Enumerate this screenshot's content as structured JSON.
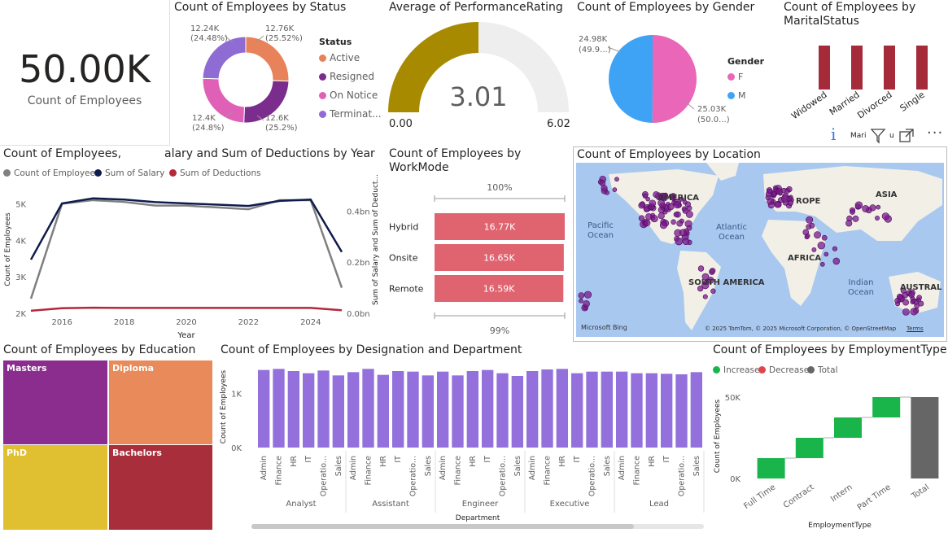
{
  "kpi": {
    "value": "50.00K",
    "label": "Count of Employees"
  },
  "status": {
    "title": "Count of Employees by Status",
    "legend_title": "Status",
    "labels": [
      "12.76K\n(25.52%)",
      "12.6K\n(25.2%)",
      "12.4K\n(24.8%)",
      "12.24K\n(24.48%)"
    ],
    "legend": [
      "Active",
      "Resigned",
      "On Notice",
      "Terminat..."
    ],
    "colors": [
      "#e8825a",
      "#7b2d8e",
      "#e060b8",
      "#8f6bd4"
    ]
  },
  "perf": {
    "title": "Average of PerformanceRating",
    "value": "3.01",
    "min": "0.00",
    "max": "6.02",
    "color": "#a88a00"
  },
  "gender": {
    "title": "Count of Employees by Gender",
    "legend_title": "Gender",
    "legend": [
      "F",
      "M"
    ],
    "label_m": "24.98K\n(49.9...)",
    "label_f": "25.03K\n(50.0...)",
    "colors": [
      "#e966b8",
      "#3fa3f5"
    ]
  },
  "marital": {
    "title": "Count of Employees by",
    "title2": "MaritalStatus",
    "small_label": "Mari",
    "small_u": "u",
    "icons": [
      "info-icon",
      "filter-icon",
      "expand-icon",
      "more-icon"
    ]
  },
  "trend": {
    "title_left": "Count of Employees,",
    "title_right": "alary and Sum of Deductions by Year",
    "legend": [
      "Count of Employees",
      "Sum of Salary",
      "Sum of Deductions"
    ],
    "colors": [
      "#808080",
      "#0f1b4c",
      "#b5283c"
    ],
    "y_left_title": "Count of Employees",
    "y_right_title": "Sum of Salary and Sum of Deduct...",
    "x_title": "Year",
    "y_left_ticks": [
      "5K",
      "4K",
      "3K",
      "2K"
    ],
    "y_right_ticks": [
      "0.4bn",
      "0.2bn",
      "0.0bn"
    ],
    "x_ticks": [
      "2016",
      "2018",
      "2020",
      "2022",
      "2024"
    ]
  },
  "workmode": {
    "title": "Count of Employees by",
    "title2": "WorkMode",
    "top_label": "100%",
    "bottom_label": "99%",
    "color": "#e06470"
  },
  "location": {
    "title": "Count of Employees by Location",
    "labels": [
      "AMERICA",
      "ROPE",
      "ASIA",
      "Pacific\nOcean",
      "Atlantic\nOcean",
      "AFRICA",
      "SOUTH AMERICA",
      "Indian\nOcean",
      "AUSTRAL"
    ],
    "bing": "Microsoft Bing",
    "copyright": "© 2025 TomTom, © 2025 Microsoft Corporation, © OpenStreetMap",
    "terms": "Terms",
    "dot_color": "#7a1a8c"
  },
  "education": {
    "title": "Count of Employees by Education",
    "cells": [
      {
        "label": "Masters",
        "color": "#8a2d8e"
      },
      {
        "label": "Diploma",
        "color": "#e88a5a"
      },
      {
        "label": "PhD",
        "color": "#e0c030"
      },
      {
        "label": "Bachelors",
        "color": "#a82e3c"
      }
    ]
  },
  "designation": {
    "title": "Count of Employees by Designation and Department",
    "y_title": "Count of Employees",
    "x_title": "Department",
    "y_ticks": [
      "1K",
      "0K"
    ],
    "color": "#9370db"
  },
  "employment": {
    "title": "Count of Employees by EmploymentType",
    "legend": [
      "Increase",
      "Decrease",
      "Total"
    ],
    "colors": [
      "#1ab54a",
      "#e0444c",
      "#666666"
    ],
    "y_title": "Count of Employees",
    "x_title": "EmploymentType",
    "y_ticks": [
      "50K",
      "0K"
    ]
  },
  "chart_data": [
    {
      "type": "pie",
      "title": "Count of Employees by Status",
      "categories": [
        "Active",
        "Resigned",
        "On Notice",
        "Terminated"
      ],
      "values": [
        12760,
        12600,
        12400,
        12240
      ]
    },
    {
      "type": "gauge",
      "title": "Average of PerformanceRating",
      "value": 3.01,
      "min": 0,
      "max": 6.02
    },
    {
      "type": "pie",
      "title": "Count of Employees by Gender",
      "categories": [
        "F",
        "M"
      ],
      "values": [
        25030,
        24980
      ]
    },
    {
      "type": "bar",
      "title": "Count of Employees by MaritalStatus",
      "categories": [
        "Widowed",
        "Married",
        "Divorced",
        "Single"
      ],
      "values": [
        12500,
        12500,
        12500,
        12500
      ]
    },
    {
      "type": "line",
      "title": "Count of Employees, Sum of Salary and Sum of Deductions by Year",
      "x": [
        2015,
        2016,
        2017,
        2018,
        2019,
        2020,
        2021,
        2022,
        2023,
        2024,
        2025
      ],
      "series": [
        {
          "name": "Count of Employees",
          "axis": "left",
          "values": [
            2400,
            5000,
            5100,
            5050,
            4950,
            4950,
            4900,
            4850,
            5100,
            5100,
            2700
          ]
        },
        {
          "name": "Sum of Salary",
          "axis": "right",
          "values": [
            0.21,
            0.43,
            0.45,
            0.445,
            0.435,
            0.43,
            0.425,
            0.42,
            0.44,
            0.445,
            0.24
          ]
        },
        {
          "name": "Sum of Deductions",
          "axis": "right",
          "values": [
            0.01,
            0.02,
            0.022,
            0.021,
            0.021,
            0.021,
            0.021,
            0.021,
            0.021,
            0.021,
            0.012
          ]
        }
      ],
      "xlabel": "Year",
      "ylabel": "Count of Employees",
      "ylim": [
        2000,
        5500
      ],
      "y2lim": [
        0,
        0.5
      ]
    },
    {
      "type": "bar",
      "title": "Count of Employees by WorkMode",
      "categories": [
        "Hybrid",
        "Onsite",
        "Remote"
      ],
      "values": [
        16770,
        16650,
        16590
      ],
      "labels": [
        "16.77K",
        "16.65K",
        "16.59K"
      ]
    },
    {
      "type": "treemap",
      "title": "Count of Employees by Education",
      "categories": [
        "Masters",
        "Diploma",
        "PhD",
        "Bachelors"
      ],
      "values": [
        12500,
        12500,
        12500,
        12500
      ]
    },
    {
      "type": "bar",
      "title": "Count of Employees by Designation and Department",
      "groups": [
        "Analyst",
        "Assistant",
        "Engineer",
        "Executive",
        "Lead"
      ],
      "departments": [
        "Admin",
        "Finance",
        "HR",
        "IT",
        "Operatio...",
        "Sales"
      ],
      "values": [
        [
          1430,
          1450,
          1410,
          1370,
          1420,
          1330
        ],
        [
          1390,
          1450,
          1340,
          1410,
          1400,
          1330
        ],
        [
          1400,
          1330,
          1410,
          1430,
          1370,
          1320
        ],
        [
          1410,
          1440,
          1450,
          1370,
          1400,
          1400
        ],
        [
          1400,
          1370,
          1370,
          1360,
          1350,
          1390
        ]
      ],
      "xlabel": "Department",
      "ylabel": "Count of Employees",
      "ylim": [
        0,
        1500
      ]
    },
    {
      "type": "waterfall",
      "title": "Count of Employees by EmploymentType",
      "categories": [
        "Full Time",
        "Contract",
        "Intern",
        "Part Time",
        "Total"
      ],
      "values": [
        12500,
        12500,
        12500,
        12500,
        50000
      ],
      "xlabel": "EmploymentType",
      "ylabel": "Count of Employees",
      "ylim": [
        0,
        52000
      ]
    }
  ]
}
